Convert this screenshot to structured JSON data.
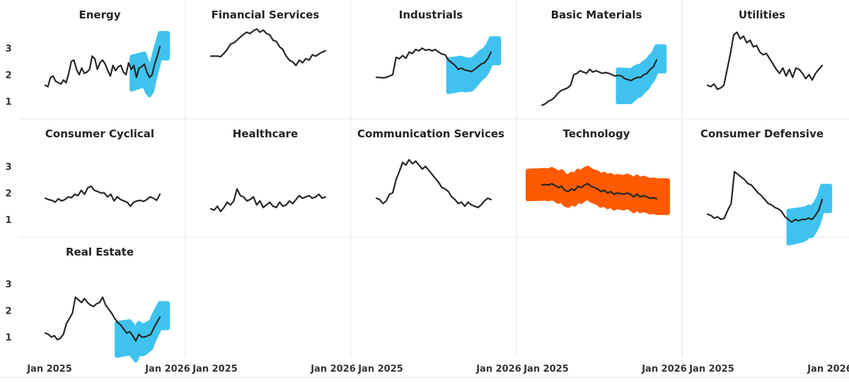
{
  "chart_data": {
    "type": "line",
    "layout": "small-multiples",
    "x_start_label": "Jan 2025",
    "x_end_label": "Jan 2026",
    "y_ticks": [
      "1",
      "2",
      "3"
    ],
    "ylim": [
      0.7,
      3.8
    ],
    "highlight_colors": {
      "blue": "#3fc3ee",
      "orange": "#ff5a00"
    },
    "line_color": "#262626",
    "panels": [
      {
        "title": "Energy",
        "highlight": "blue",
        "highlight_from": 0.85,
        "values": [
          1.6,
          1.55,
          1.9,
          1.95,
          1.75,
          1.7,
          1.65,
          1.8,
          1.7,
          2.05,
          2.5,
          2.55,
          2.2,
          2.0,
          2.25,
          2.05,
          2.1,
          2.2,
          2.7,
          2.6,
          2.2,
          2.45,
          2.55,
          2.4,
          2.15,
          1.95,
          2.35,
          2.15,
          2.3,
          2.35,
          2.1,
          2.0,
          2.45,
          2.2,
          2.35,
          1.9,
          2.25,
          2.3,
          2.4,
          2.1,
          1.9,
          2.0,
          2.4,
          2.7,
          3.05
        ]
      },
      {
        "title": "Financial Services",
        "highlight": null,
        "highlight_from": null,
        "values": [
          2.7,
          2.7,
          2.7,
          2.68,
          2.8,
          2.95,
          3.15,
          3.2,
          3.3,
          3.42,
          3.52,
          3.6,
          3.55,
          3.65,
          3.72,
          3.6,
          3.68,
          3.55,
          3.5,
          3.3,
          3.25,
          3.05,
          2.95,
          2.7,
          2.55,
          2.48,
          2.35,
          2.55,
          2.45,
          2.6,
          2.55,
          2.75,
          2.7,
          2.78,
          2.85,
          2.9
        ]
      },
      {
        "title": "Industrials",
        "highlight": "blue",
        "highlight_from": 0.72,
        "values": [
          1.9,
          1.9,
          1.88,
          1.9,
          1.95,
          2.0,
          2.65,
          2.6,
          2.72,
          2.62,
          2.85,
          2.8,
          2.95,
          2.9,
          3.0,
          2.92,
          2.95,
          2.9,
          2.95,
          2.85,
          2.78,
          2.75,
          2.55,
          2.45,
          2.35,
          2.2,
          2.25,
          2.18,
          2.15,
          2.12,
          2.2,
          2.3,
          2.4,
          2.45,
          2.6,
          2.85
        ]
      },
      {
        "title": "Basic Materials",
        "highlight": "blue",
        "highlight_from": 0.75,
        "values": [
          0.85,
          0.9,
          1.0,
          1.05,
          1.15,
          1.3,
          1.4,
          1.45,
          1.5,
          1.6,
          2.0,
          2.05,
          2.15,
          2.1,
          2.05,
          2.2,
          2.1,
          2.15,
          2.1,
          2.05,
          2.08,
          2.05,
          2.0,
          1.95,
          1.98,
          1.95,
          1.85,
          1.82,
          1.78,
          1.85,
          1.9,
          1.9,
          2.0,
          2.05,
          2.2,
          2.3,
          2.55
        ]
      },
      {
        "title": "Utilities",
        "highlight": null,
        "highlight_from": null,
        "values": [
          1.6,
          1.55,
          1.65,
          1.45,
          1.5,
          1.6,
          2.2,
          2.8,
          3.5,
          3.6,
          3.35,
          3.45,
          3.2,
          3.3,
          3.05,
          3.1,
          2.85,
          2.75,
          2.8,
          2.6,
          2.4,
          2.2,
          2.05,
          2.25,
          1.95,
          2.2,
          1.9,
          2.25,
          2.2,
          2.05,
          1.85,
          2.0,
          1.8,
          2.05,
          2.2,
          2.35
        ]
      },
      {
        "title": "Consumer Cyclical",
        "highlight": null,
        "highlight_from": null,
        "values": [
          1.8,
          1.75,
          1.72,
          1.65,
          1.78,
          1.7,
          1.75,
          1.85,
          1.82,
          1.95,
          1.9,
          2.1,
          1.95,
          2.2,
          2.25,
          2.1,
          2.05,
          2.0,
          2.0,
          1.85,
          1.95,
          1.7,
          1.85,
          1.75,
          1.7,
          1.65,
          1.5,
          1.65,
          1.7,
          1.72,
          1.68,
          1.75,
          1.85,
          1.8,
          1.72,
          1.95
        ]
      },
      {
        "title": "Healthcare",
        "highlight": null,
        "highlight_from": null,
        "values": [
          1.4,
          1.35,
          1.5,
          1.3,
          1.45,
          1.65,
          1.55,
          1.7,
          2.15,
          1.9,
          1.85,
          1.7,
          1.75,
          1.85,
          1.55,
          1.7,
          1.45,
          1.55,
          1.65,
          1.5,
          1.45,
          1.65,
          1.5,
          1.55,
          1.7,
          1.6,
          1.75,
          1.9,
          1.8,
          1.85,
          1.9,
          1.8,
          1.85,
          1.95,
          1.8,
          1.85
        ]
      },
      {
        "title": "Communication Services",
        "highlight": null,
        "highlight_from": null,
        "values": [
          1.8,
          1.75,
          1.6,
          1.7,
          1.95,
          2.0,
          2.5,
          2.8,
          3.15,
          3.05,
          3.25,
          3.1,
          3.2,
          3.05,
          2.9,
          3.0,
          2.85,
          2.7,
          2.55,
          2.4,
          2.2,
          2.15,
          2.05,
          1.85,
          1.75,
          1.6,
          1.65,
          1.5,
          1.65,
          1.55,
          1.5,
          1.45,
          1.55,
          1.7,
          1.8,
          1.75
        ]
      },
      {
        "title": "Technology",
        "highlight": "orange",
        "highlight_from": 0.0,
        "values": [
          2.3,
          2.32,
          2.3,
          2.35,
          2.28,
          2.2,
          2.25,
          2.1,
          2.05,
          2.15,
          2.1,
          2.25,
          2.2,
          2.3,
          2.35,
          2.25,
          2.2,
          2.15,
          2.05,
          2.1,
          2.0,
          2.05,
          1.95,
          2.0,
          1.98,
          1.95,
          2.0,
          1.95,
          1.85,
          1.95,
          1.85,
          1.9,
          1.85,
          1.8,
          1.82,
          1.78
        ]
      },
      {
        "title": "Consumer Defensive",
        "highlight": "blue",
        "highlight_from": 0.8,
        "values": [
          1.2,
          1.15,
          1.05,
          1.1,
          1.0,
          1.05,
          1.35,
          1.6,
          2.8,
          2.7,
          2.6,
          2.5,
          2.35,
          2.3,
          2.15,
          2.0,
          1.9,
          1.75,
          1.6,
          1.55,
          1.45,
          1.4,
          1.3,
          1.1,
          1.0,
          0.9,
          1.0,
          0.95,
          1.0,
          1.0,
          1.05,
          1.0,
          1.15,
          1.35,
          1.75
        ]
      },
      {
        "title": "Real Estate",
        "highlight": "blue",
        "highlight_from": 0.72,
        "values": [
          1.15,
          1.1,
          1.0,
          1.05,
          0.9,
          0.95,
          1.1,
          1.5,
          1.7,
          1.9,
          2.5,
          2.4,
          2.3,
          2.45,
          2.3,
          2.2,
          2.15,
          2.25,
          2.3,
          2.5,
          2.2,
          2.05,
          1.9,
          1.7,
          1.55,
          1.45,
          1.3,
          1.15,
          1.2,
          1.05,
          0.85,
          1.1,
          1.0,
          1.0,
          1.05,
          1.1,
          1.35,
          1.55,
          1.75
        ]
      }
    ]
  }
}
